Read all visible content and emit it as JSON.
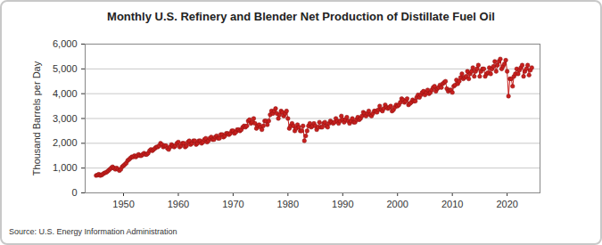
{
  "chart_data": {
    "type": "line",
    "title": "Monthly U.S. Refinery and Blender Net Production of Distillate Fuel Oil",
    "y_label": "Thousand Barrels per Day",
    "source": "Source: U.S. Energy Information Administration",
    "xlim": [
      1943,
      2026
    ],
    "xticks": [
      1950,
      1960,
      1970,
      1980,
      1990,
      2000,
      2010,
      2020
    ],
    "ylim": [
      0,
      6000
    ],
    "yticks": [
      0,
      {
        "value": 1000,
        "label": "1,000"
      },
      {
        "value": 2000,
        "label": "2,000"
      },
      {
        "value": 3000,
        "label": "3,000"
      },
      {
        "value": 4000,
        "label": "4,000"
      },
      {
        "value": 5000,
        "label": "5,000"
      },
      {
        "value": 6000,
        "label": "6,000"
      }
    ],
    "grid": true,
    "x": [
      1945,
      1945.25,
      1945.5,
      1945.75,
      1946,
      1946.25,
      1946.5,
      1946.75,
      1947,
      1947.25,
      1947.5,
      1947.75,
      1948,
      1948.25,
      1948.5,
      1948.75,
      1949,
      1949.25,
      1949.5,
      1949.75,
      1950,
      1950.25,
      1950.5,
      1950.75,
      1951,
      1951.25,
      1951.5,
      1951.75,
      1952,
      1952.25,
      1952.5,
      1952.75,
      1953,
      1953.25,
      1953.5,
      1953.75,
      1954,
      1954.25,
      1954.5,
      1954.75,
      1955,
      1955.25,
      1955.5,
      1955.75,
      1956,
      1956.25,
      1956.5,
      1956.75,
      1957,
      1957.25,
      1957.5,
      1957.75,
      1958,
      1958.25,
      1958.5,
      1958.75,
      1959,
      1959.25,
      1959.5,
      1959.75,
      1960,
      1960.25,
      1960.5,
      1960.75,
      1961,
      1961.25,
      1961.5,
      1961.75,
      1962,
      1962.25,
      1962.5,
      1962.75,
      1963,
      1963.25,
      1963.5,
      1963.75,
      1964,
      1964.25,
      1964.5,
      1964.75,
      1965,
      1965.25,
      1965.5,
      1965.75,
      1966,
      1966.25,
      1966.5,
      1966.75,
      1967,
      1967.25,
      1967.5,
      1967.75,
      1968,
      1968.25,
      1968.5,
      1968.75,
      1969,
      1969.25,
      1969.5,
      1969.75,
      1970,
      1970.25,
      1970.5,
      1970.75,
      1971,
      1971.25,
      1971.5,
      1971.75,
      1972,
      1972.25,
      1972.5,
      1972.75,
      1973,
      1973.25,
      1973.5,
      1973.75,
      1974,
      1974.25,
      1974.5,
      1974.75,
      1975,
      1975.25,
      1975.5,
      1975.75,
      1976,
      1976.25,
      1976.5,
      1976.75,
      1977,
      1977.25,
      1977.5,
      1977.75,
      1978,
      1978.25,
      1978.5,
      1978.75,
      1979,
      1979.25,
      1979.5,
      1979.75,
      1980,
      1980.25,
      1980.5,
      1980.75,
      1981,
      1981.25,
      1981.5,
      1981.75,
      1982,
      1982.25,
      1982.5,
      1982.75,
      1983,
      1983.25,
      1983.5,
      1983.75,
      1984,
      1984.25,
      1984.5,
      1984.75,
      1985,
      1985.25,
      1985.5,
      1985.75,
      1986,
      1986.25,
      1986.5,
      1986.75,
      1987,
      1987.25,
      1987.5,
      1987.75,
      1988,
      1988.25,
      1988.5,
      1988.75,
      1989,
      1989.25,
      1989.5,
      1989.75,
      1990,
      1990.25,
      1990.5,
      1990.75,
      1991,
      1991.25,
      1991.5,
      1991.75,
      1992,
      1992.25,
      1992.5,
      1992.75,
      1993,
      1993.25,
      1993.5,
      1993.75,
      1994,
      1994.25,
      1994.5,
      1994.75,
      1995,
      1995.25,
      1995.5,
      1995.75,
      1996,
      1996.25,
      1996.5,
      1996.75,
      1997,
      1997.25,
      1997.5,
      1997.75,
      1998,
      1998.25,
      1998.5,
      1998.75,
      1999,
      1999.25,
      1999.5,
      1999.75,
      2000,
      2000.25,
      2000.5,
      2000.75,
      2001,
      2001.25,
      2001.5,
      2001.75,
      2002,
      2002.25,
      2002.5,
      2002.75,
      2003,
      2003.25,
      2003.5,
      2003.75,
      2004,
      2004.25,
      2004.5,
      2004.75,
      2005,
      2005.25,
      2005.5,
      2005.75,
      2006,
      2006.25,
      2006.5,
      2006.75,
      2007,
      2007.25,
      2007.5,
      2007.75,
      2008,
      2008.25,
      2008.5,
      2008.75,
      2009,
      2009.25,
      2009.5,
      2009.75,
      2010,
      2010.25,
      2010.5,
      2010.75,
      2011,
      2011.25,
      2011.5,
      2011.75,
      2012,
      2012.25,
      2012.5,
      2012.75,
      2013,
      2013.25,
      2013.5,
      2013.75,
      2014,
      2014.25,
      2014.5,
      2014.75,
      2015,
      2015.25,
      2015.5,
      2015.75,
      2016,
      2016.25,
      2016.5,
      2016.75,
      2017,
      2017.25,
      2017.5,
      2017.75,
      2018,
      2018.25,
      2018.5,
      2018.75,
      2019,
      2019.25,
      2019.5,
      2019.75,
      2020,
      2020.25,
      2020.5,
      2020.75,
      2021,
      2021.25,
      2021.5,
      2021.75,
      2022,
      2022.25,
      2022.5,
      2022.75,
      2023,
      2023.25,
      2023.5,
      2023.75,
      2024,
      2024.25,
      2024.5
    ],
    "series": [
      {
        "name": "Distillate Fuel Oil",
        "color": "#c8201e",
        "marker": "circle",
        "line_style": "solid",
        "values": [
          700,
          720,
          750,
          700,
          720,
          760,
          800,
          820,
          850,
          900,
          950,
          1000,
          1050,
          1000,
          950,
          1000,
          950,
          900,
          950,
          1050,
          1100,
          1150,
          1200,
          1300,
          1350,
          1400,
          1450,
          1450,
          1500,
          1450,
          1500,
          1550,
          1500,
          1500,
          1550,
          1600,
          1550,
          1550,
          1600,
          1700,
          1750,
          1700,
          1750,
          1800,
          1850,
          1850,
          1900,
          2000,
          1950,
          1850,
          1900,
          1900,
          1800,
          1750,
          1850,
          1950,
          1900,
          1850,
          1900,
          2000,
          2050,
          1850,
          1900,
          2000,
          2000,
          1850,
          1900,
          2050,
          2100,
          1950,
          2000,
          2100,
          2100,
          1950,
          2000,
          2100,
          2100,
          2000,
          2050,
          2150,
          2200,
          2050,
          2100,
          2200,
          2250,
          2150,
          2150,
          2250,
          2300,
          2200,
          2200,
          2350,
          2350,
          2250,
          2300,
          2400,
          2400,
          2350,
          2400,
          2500,
          2500,
          2400,
          2450,
          2550,
          2550,
          2500,
          2550,
          2650,
          2700,
          2650,
          2700,
          2900,
          2950,
          2800,
          2850,
          3000,
          2800,
          2600,
          2700,
          2750,
          2650,
          2550,
          2700,
          2900,
          2900,
          2750,
          2900,
          3150,
          3300,
          3200,
          3300,
          3400,
          3200,
          3000,
          3150,
          3300,
          3250,
          3100,
          3200,
          3300,
          3000,
          2600,
          2700,
          2800,
          2700,
          2500,
          2600,
          2750,
          2650,
          2500,
          2500,
          2700,
          2100,
          2300,
          2500,
          2700,
          2800,
          2650,
          2700,
          2800,
          2700,
          2550,
          2650,
          2850,
          2650,
          2650,
          2800,
          2850,
          2700,
          2650,
          2800,
          2900,
          2850,
          2800,
          2850,
          3000,
          2900,
          2800,
          2900,
          3100,
          2950,
          2850,
          2950,
          3050,
          2900,
          2800,
          2900,
          3000,
          2850,
          2850,
          2950,
          3050,
          2950,
          3000,
          3100,
          3250,
          3200,
          3100,
          3200,
          3300,
          3150,
          3100,
          3200,
          3300,
          3300,
          3250,
          3350,
          3500,
          3350,
          3300,
          3400,
          3550,
          3450,
          3400,
          3450,
          3500,
          3300,
          3350,
          3450,
          3550,
          3500,
          3550,
          3650,
          3800,
          3750,
          3650,
          3700,
          3800,
          3550,
          3600,
          3650,
          3750,
          3700,
          3700,
          3850,
          3950,
          3850,
          3950,
          4050,
          4100,
          3950,
          4050,
          4150,
          4000,
          4050,
          4150,
          4250,
          4300,
          4100,
          4200,
          4250,
          4350,
          4250,
          4400,
          4450,
          4500,
          4200,
          4100,
          4150,
          4150,
          4050,
          4300,
          4350,
          4550,
          4400,
          4500,
          4650,
          4800,
          4600,
          4650,
          4700,
          4900,
          4600,
          4800,
          4900,
          5050,
          4700,
          4900,
          5000,
          5150,
          4700,
          4900,
          5000,
          5000,
          4700,
          4800,
          4850,
          5050,
          4800,
          5000,
          5100,
          5300,
          4900,
          5150,
          5300,
          5400,
          5000,
          5100,
          5200,
          5350,
          4900,
          3900,
          4600,
          4600,
          4300,
          4700,
          4800,
          5000,
          4800,
          4950,
          5050,
          5150,
          4700,
          4900,
          5000,
          5150,
          4750,
          4950,
          5050
        ]
      }
    ]
  }
}
